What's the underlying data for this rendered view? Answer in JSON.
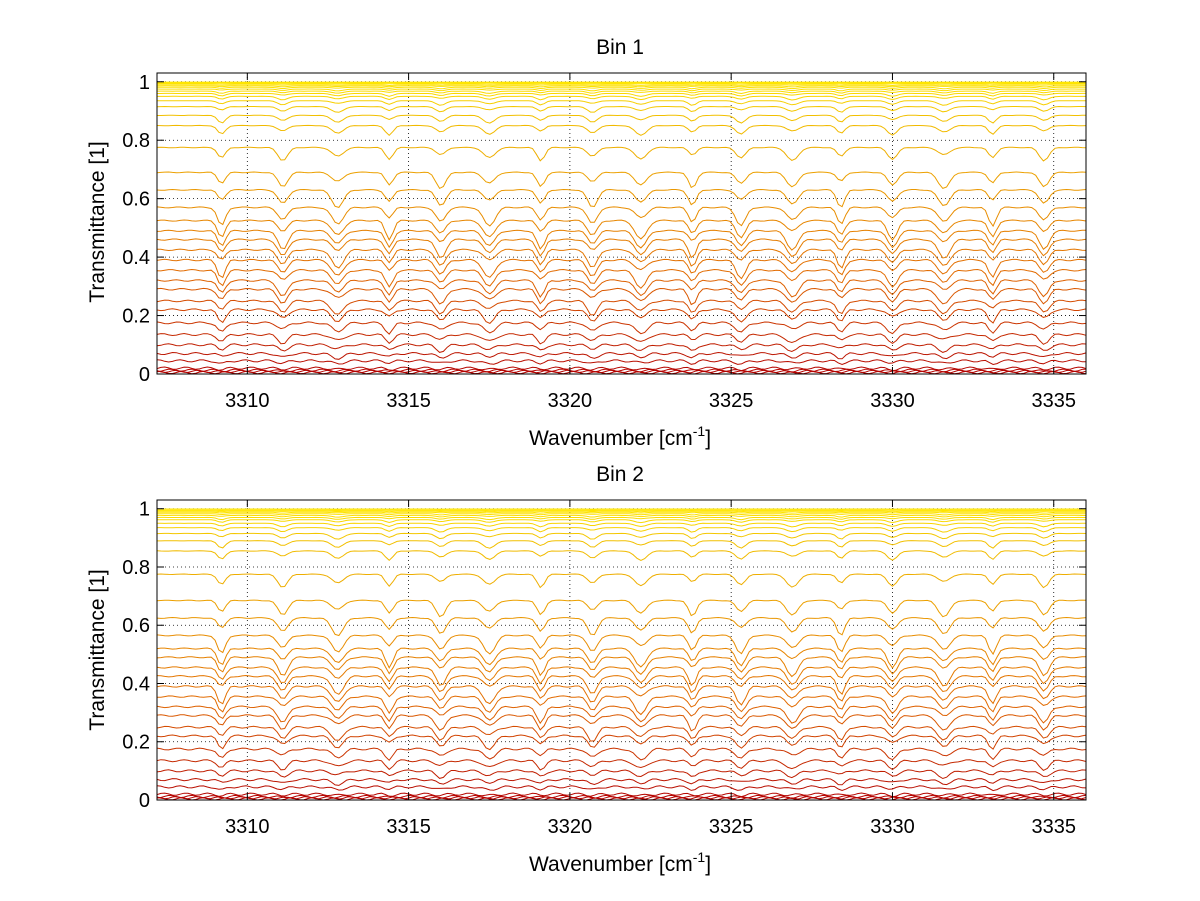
{
  "chart_data": [
    {
      "type": "line",
      "title": "Bin 1",
      "xlabel": "Wavenumber [cm",
      "xlabel_sup": "-1",
      "xlabel_end": "]",
      "ylabel": "Transmittance [1]",
      "xlim": [
        3307.2,
        3336.0
      ],
      "ylim": [
        0,
        1.03
      ],
      "xticks": [
        3310,
        3315,
        3320,
        3325,
        3330,
        3335
      ],
      "xtick_labels": [
        "3310",
        "3315",
        "3320",
        "3325",
        "3330",
        "3335"
      ],
      "yticks": [
        0,
        0.2,
        0.4,
        0.6,
        0.8,
        1
      ],
      "ytick_labels": [
        "0",
        "0.2",
        "0.4",
        "0.6",
        "0.8",
        "1"
      ],
      "grid": "dotted",
      "line_lines": [
        3309.2,
        3311.1,
        3312.8,
        3314.4,
        3316.0,
        3317.5,
        3319.1,
        3320.7,
        3322.2,
        3323.8,
        3325.3,
        3326.9,
        3328.4,
        3330.0,
        3331.6,
        3333.1,
        3334.7
      ],
      "series_levels": [
        0.005,
        0.009,
        0.013,
        0.02,
        0.045,
        0.07,
        0.1,
        0.135,
        0.175,
        0.22,
        0.25,
        0.29,
        0.32,
        0.355,
        0.39,
        0.425,
        0.46,
        0.49,
        0.525,
        0.57,
        0.63,
        0.69,
        0.775,
        0.85,
        0.885,
        0.915,
        0.935,
        0.95,
        0.96,
        0.968,
        0.975,
        0.981,
        0.986,
        0.99,
        0.994,
        0.997,
        0.999
      ],
      "colors": {
        "low": "#b30000",
        "mid": "#e26a00",
        "high": "#f2c200",
        "top": "#ffe600",
        "noise": "#22c7e0"
      }
    },
    {
      "type": "line",
      "title": "Bin 2",
      "xlabel": "Wavenumber [cm",
      "xlabel_sup": "-1",
      "xlabel_end": "]",
      "ylabel": "Transmittance [1]",
      "xlim": [
        3307.2,
        3336.0
      ],
      "ylim": [
        0,
        1.03
      ],
      "xticks": [
        3310,
        3315,
        3320,
        3325,
        3330,
        3335
      ],
      "xtick_labels": [
        "3310",
        "3315",
        "3320",
        "3325",
        "3330",
        "3335"
      ],
      "yticks": [
        0,
        0.2,
        0.4,
        0.6,
        0.8,
        1
      ],
      "ytick_labels": [
        "0",
        "0.2",
        "0.4",
        "0.6",
        "0.8",
        "1"
      ],
      "grid": "dotted",
      "line_lines": [
        3309.2,
        3311.1,
        3312.8,
        3314.4,
        3316.0,
        3317.5,
        3319.1,
        3320.7,
        3322.2,
        3323.8,
        3325.3,
        3326.9,
        3328.4,
        3330.0,
        3331.6,
        3333.1,
        3334.7
      ],
      "series_levels": [
        0.004,
        0.008,
        0.012,
        0.02,
        0.045,
        0.07,
        0.1,
        0.135,
        0.175,
        0.22,
        0.25,
        0.29,
        0.32,
        0.355,
        0.39,
        0.425,
        0.455,
        0.49,
        0.52,
        0.565,
        0.625,
        0.685,
        0.775,
        0.855,
        0.89,
        0.915,
        0.935,
        0.95,
        0.962,
        0.97,
        0.977,
        0.983,
        0.988,
        0.992,
        0.995,
        0.998,
        0.999
      ],
      "colors": {
        "low": "#b30000",
        "mid": "#e26a00",
        "high": "#f2c200",
        "top": "#ffe600",
        "noise": "#22c7e0"
      }
    }
  ]
}
